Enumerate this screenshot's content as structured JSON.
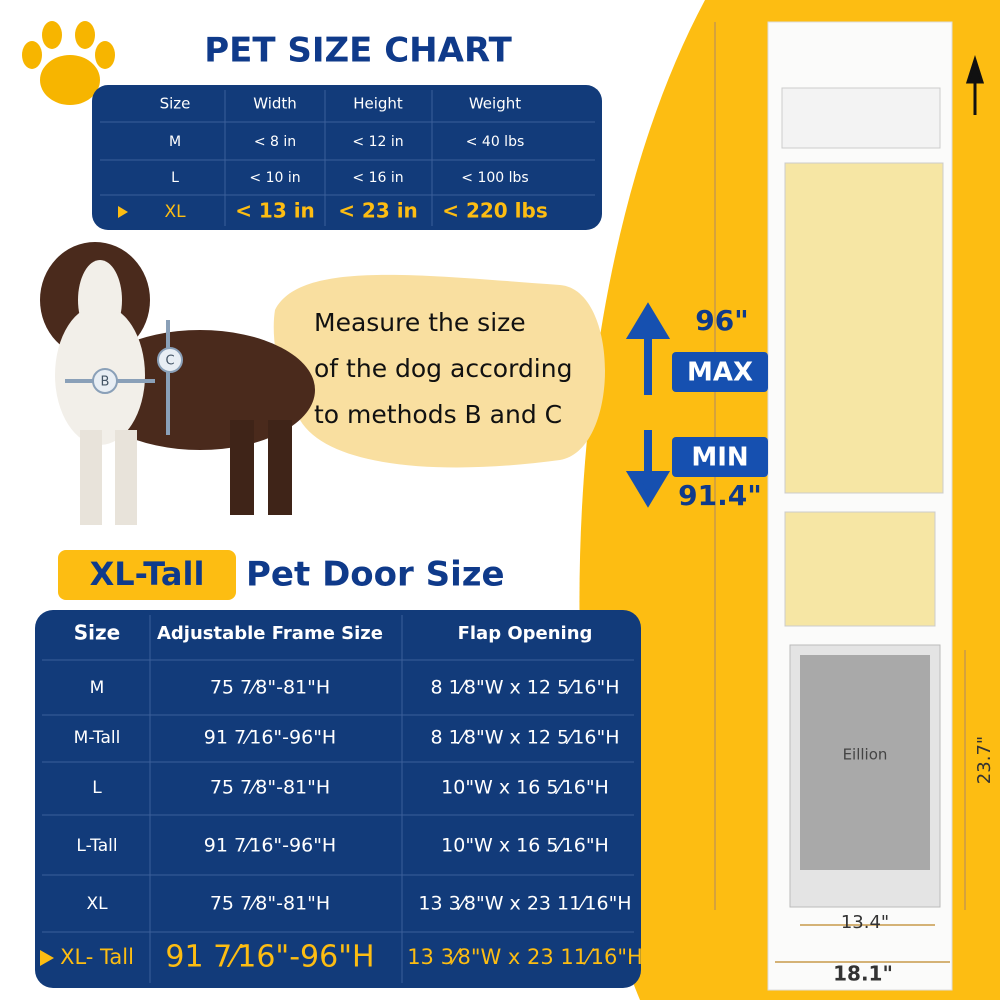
{
  "size_chart": {
    "title": "PET SIZE CHART",
    "headers": [
      "Size",
      "Width",
      "Height",
      "Weight"
    ],
    "rows": [
      [
        "M",
        "< 8 in",
        "< 12 in",
        "< 40 lbs"
      ],
      [
        "L",
        "< 10 in",
        "< 16 in",
        "< 100 lbs"
      ],
      [
        "XL",
        "< 13 in",
        "< 23 in",
        "< 220 lbs"
      ]
    ]
  },
  "measure": {
    "lines": [
      "Measure the size",
      "of the dog according",
      "to methods B and C"
    ],
    "label_b": "B",
    "label_c": "C"
  },
  "door_size": {
    "highlight": "XL-Tall",
    "title": "Pet Door Size",
    "headers": [
      "Size",
      "Adjustable Frame Size",
      "Flap Opening"
    ],
    "rows": [
      [
        "M",
        "75 7⁄8\"-81\"H",
        "8 1⁄8\"W x 12 5⁄16\"H"
      ],
      [
        "M-Tall",
        "91 7⁄16\"-96\"H",
        "8 1⁄8\"W x 12 5⁄16\"H"
      ],
      [
        "L",
        "75 7⁄8\"-81\"H",
        "10\"W x 16 5⁄16\"H"
      ],
      [
        "L-Tall",
        "91 7⁄16\"-96\"H",
        "10\"W x 16 5⁄16\"H"
      ],
      [
        "XL",
        "75 7⁄8\"-81\"H",
        "13 3⁄8\"W x 23 11⁄16\"H"
      ],
      [
        "XL- Tall",
        "91 7⁄16\"-96\"H",
        "13 3⁄8\"W x 23 11⁄16\"H"
      ]
    ]
  },
  "dimensions": {
    "max_height": "96\"",
    "max_label": "MAX",
    "min_label": "MIN",
    "min_height": "91.4\"",
    "flap_height": "23.7\"",
    "flap_width": "13.4\"",
    "frame_width": "18.1\""
  },
  "brand": "Eillion"
}
